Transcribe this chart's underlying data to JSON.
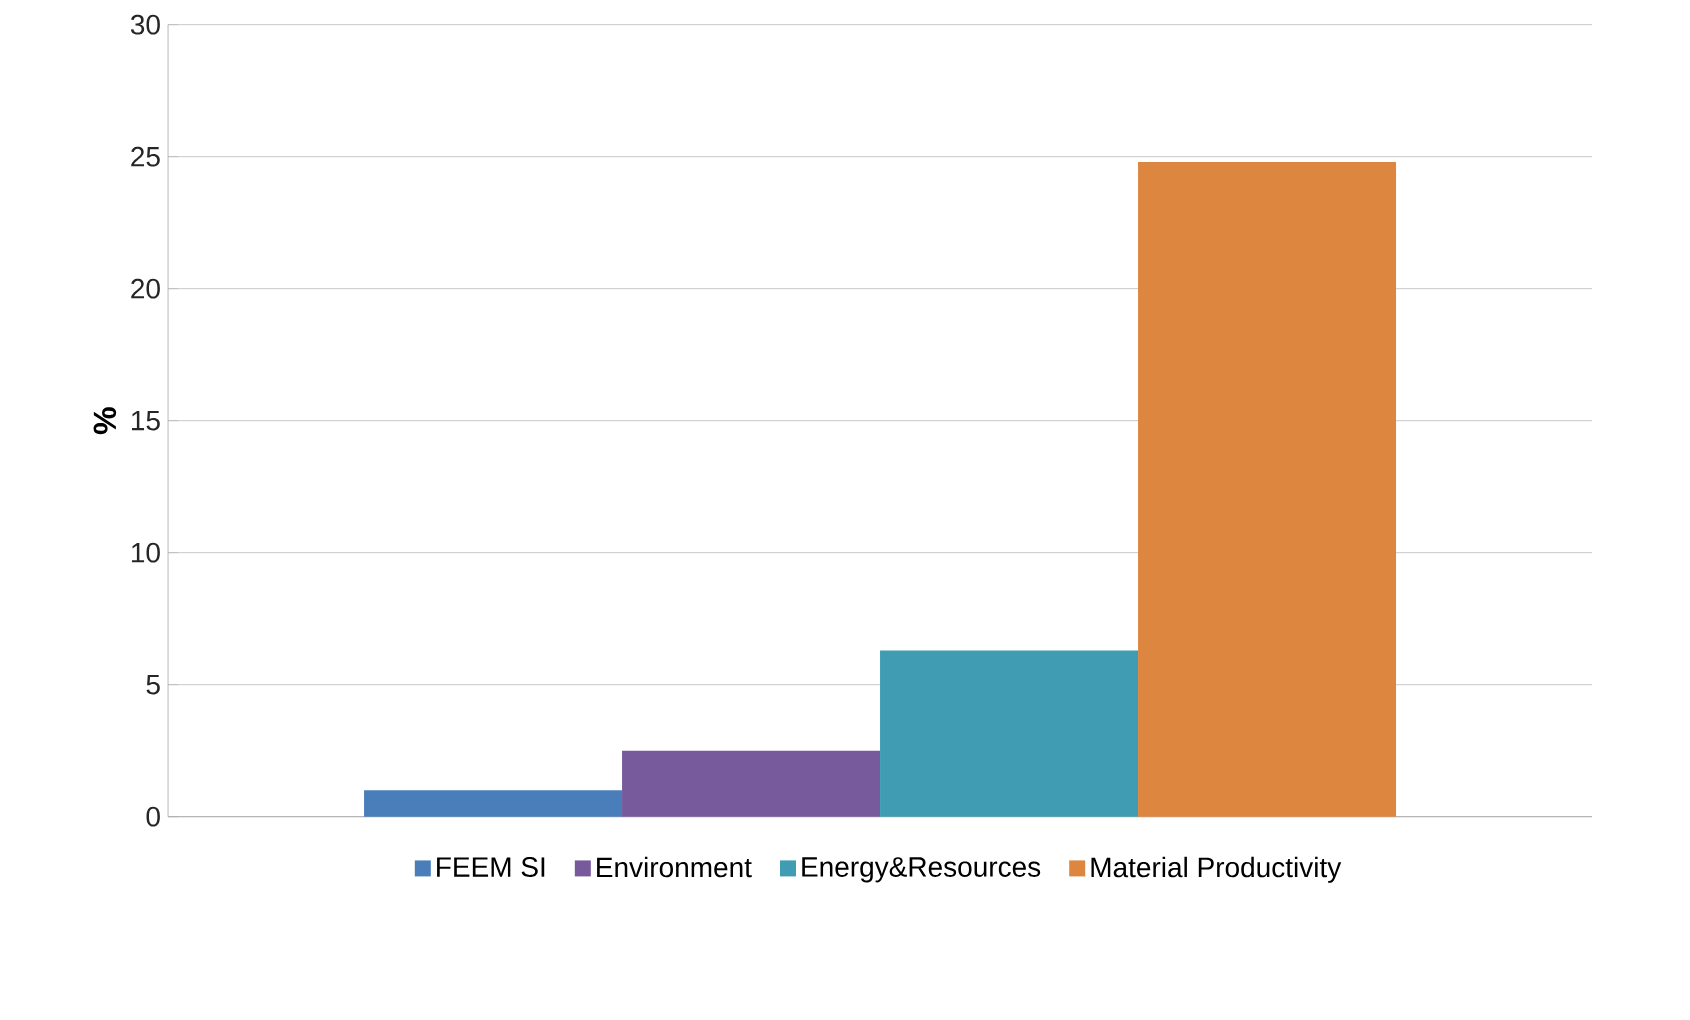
{
  "chart_data": {
    "type": "bar",
    "ylabel": "%",
    "categories": [
      null
    ],
    "series": [
      {
        "name": "FEEM SI",
        "color": "#4a7ebb",
        "values": [
          1.0
        ]
      },
      {
        "name": "Environment",
        "color": "#775a9c",
        "values": [
          2.5
        ]
      },
      {
        "name": "Energy&Resources",
        "color": "#3f9cb3",
        "values": [
          6.3
        ]
      },
      {
        "name": "Material Productivity",
        "color": "#dc8640",
        "values": [
          24.8
        ]
      }
    ],
    "ylim": [
      0,
      30
    ],
    "yticks": [
      0,
      5,
      10,
      15,
      20,
      25,
      30
    ],
    "grid": "y",
    "legend": "bottom"
  }
}
